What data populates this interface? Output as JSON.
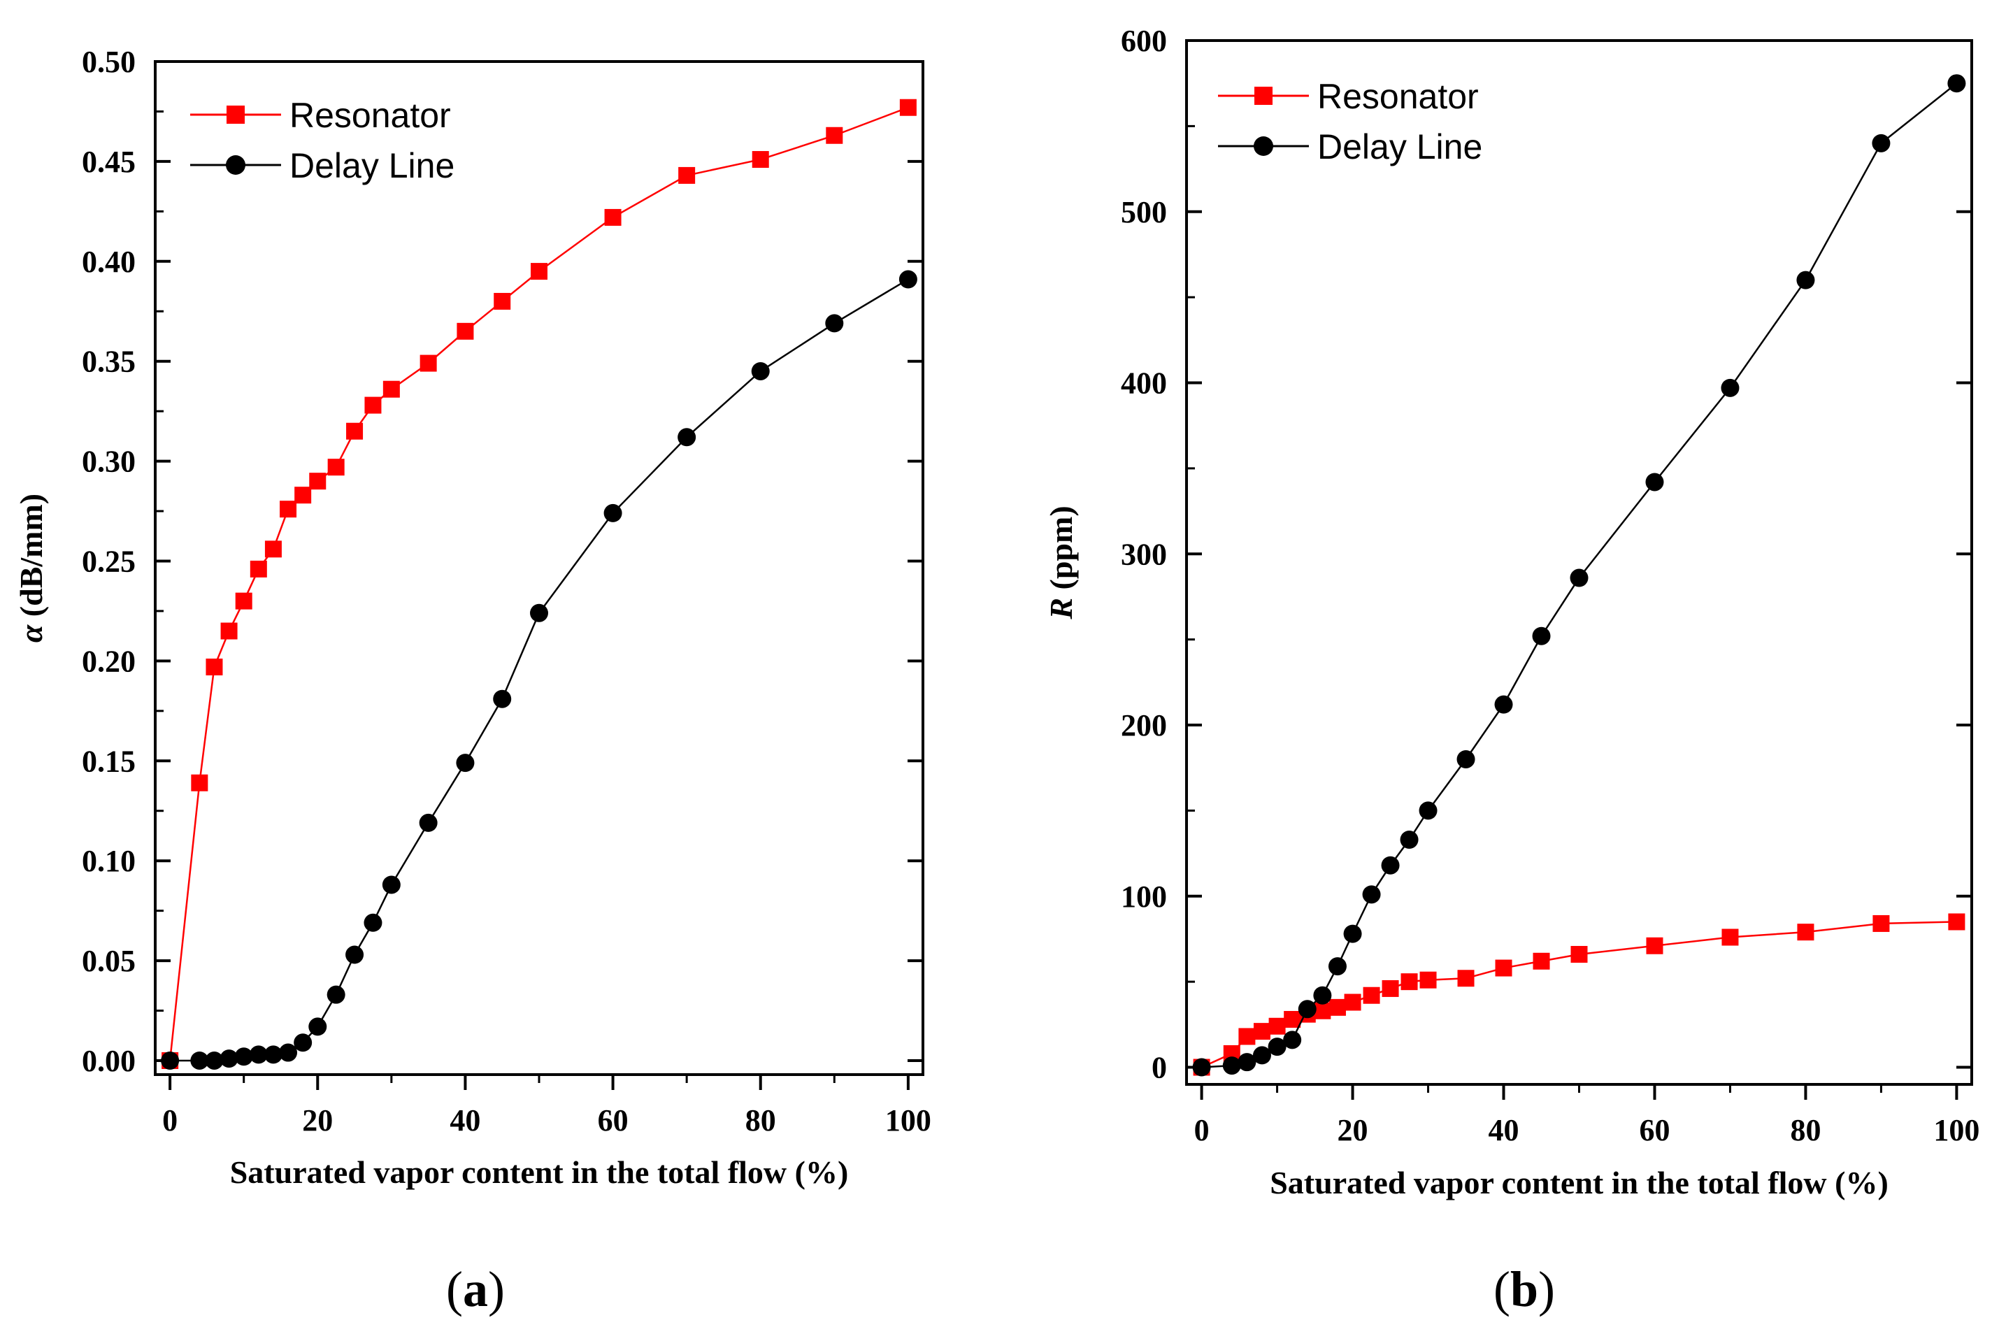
{
  "colors": {
    "resonator": "#ff0000",
    "delay_line": "#000000",
    "axis": "#000000"
  },
  "chart_data": [
    {
      "type": "line",
      "panel_label": "(a)",
      "panel_letter": "a",
      "xlabel": "Saturated vapor content in the total flow  (%)",
      "ylabel_symbol": "α",
      "ylabel_unit": " (dB/mm)",
      "xlim": [
        -2,
        102
      ],
      "ylim": [
        -0.007,
        0.5
      ],
      "xticks": [
        0,
        20,
        40,
        60,
        80,
        100
      ],
      "xtick_labels": [
        "0",
        "20",
        "40",
        "60",
        "80",
        "100"
      ],
      "yticks": [
        0.0,
        0.05,
        0.1,
        0.15,
        0.2,
        0.25,
        0.3,
        0.35,
        0.4,
        0.45,
        0.5
      ],
      "ytick_labels": [
        "0.00",
        "0.05",
        "0.10",
        "0.15",
        "0.20",
        "0.25",
        "0.30",
        "0.35",
        "0.40",
        "0.45",
        "0.50"
      ],
      "legend_position": "top-left",
      "series": [
        {
          "name": "Resonator",
          "marker": "square",
          "color": "#ff0000",
          "x": [
            0,
            4,
            6,
            8,
            10,
            12,
            14,
            16,
            18,
            20,
            22.5,
            25,
            27.5,
            30,
            35,
            40,
            45,
            50,
            60,
            70,
            80,
            90,
            100
          ],
          "y": [
            0.0,
            0.139,
            0.197,
            0.215,
            0.23,
            0.246,
            0.256,
            0.276,
            0.283,
            0.29,
            0.297,
            0.315,
            0.328,
            0.336,
            0.349,
            0.365,
            0.38,
            0.395,
            0.422,
            0.443,
            0.451,
            0.463,
            0.477
          ]
        },
        {
          "name": "Delay Line",
          "marker": "circle",
          "color": "#000000",
          "x": [
            0,
            4,
            6,
            8,
            10,
            12,
            14,
            16,
            18,
            20,
            22.5,
            25,
            27.5,
            30,
            35,
            40,
            45,
            50,
            60,
            70,
            80,
            90,
            100
          ],
          "y": [
            0.0,
            0.0,
            0.0,
            0.001,
            0.002,
            0.003,
            0.003,
            0.004,
            0.009,
            0.017,
            0.033,
            0.053,
            0.069,
            0.088,
            0.119,
            0.149,
            0.181,
            0.224,
            0.274,
            0.312,
            0.345,
            0.369,
            0.391
          ]
        }
      ]
    },
    {
      "type": "line",
      "panel_label": "(b)",
      "panel_letter": "b",
      "xlabel": "Saturated vapor content in the total flow  (%)",
      "ylabel_symbol": "R",
      "ylabel_unit": " (ppm)",
      "xlim": [
        -2,
        102
      ],
      "ylim": [
        -10,
        600
      ],
      "xticks": [
        0,
        20,
        40,
        60,
        80,
        100
      ],
      "xtick_labels": [
        "0",
        "20",
        "40",
        "60",
        "80",
        "100"
      ],
      "yticks": [
        0,
        100,
        200,
        300,
        400,
        500,
        600
      ],
      "ytick_labels": [
        "0",
        "100",
        "200",
        "300",
        "400",
        "500",
        "600"
      ],
      "legend_position": "top-left",
      "series": [
        {
          "name": "Resonator",
          "marker": "square",
          "color": "#ff0000",
          "x": [
            0,
            4,
            6,
            8,
            10,
            12,
            14,
            16,
            18,
            20,
            22.5,
            25,
            27.5,
            30,
            35,
            40,
            45,
            50,
            60,
            70,
            80,
            90,
            100
          ],
          "y": [
            0,
            8,
            18,
            21,
            24,
            28,
            31,
            33,
            35,
            38,
            42,
            46,
            50,
            51,
            52,
            58,
            62,
            66,
            71,
            76,
            79,
            84,
            85
          ]
        },
        {
          "name": "Delay Line",
          "marker": "circle",
          "color": "#000000",
          "x": [
            0,
            4,
            6,
            8,
            10,
            12,
            14,
            16,
            18,
            20,
            22.5,
            25,
            27.5,
            30,
            35,
            40,
            45,
            50,
            60,
            70,
            80,
            90,
            100
          ],
          "y": [
            0,
            1,
            3,
            7,
            12,
            16,
            34,
            42,
            59,
            78,
            101,
            118,
            133,
            150,
            180,
            212,
            252,
            286,
            342,
            397,
            460,
            540,
            575
          ]
        }
      ]
    }
  ]
}
